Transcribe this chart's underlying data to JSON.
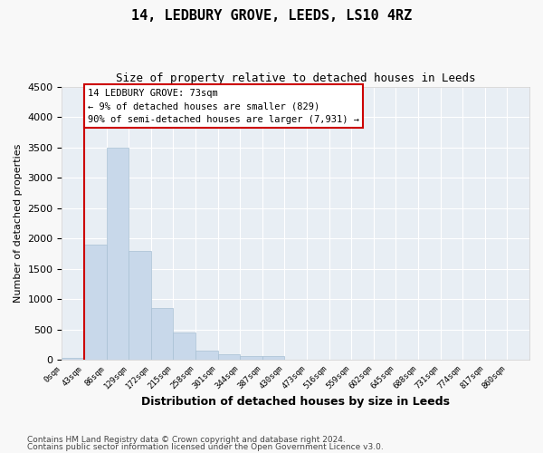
{
  "title": "14, LEDBURY GROVE, LEEDS, LS10 4RZ",
  "subtitle": "Size of property relative to detached houses in Leeds",
  "xlabel": "Distribution of detached houses by size in Leeds",
  "ylabel": "Number of detached properties",
  "bar_values": [
    30,
    1900,
    3500,
    1800,
    850,
    450,
    160,
    100,
    70,
    60,
    0,
    0,
    0,
    0,
    0,
    0,
    0,
    0,
    0,
    0,
    0
  ],
  "categories": [
    "0sqm",
    "43sqm",
    "86sqm",
    "129sqm",
    "172sqm",
    "215sqm",
    "258sqm",
    "301sqm",
    "344sqm",
    "387sqm",
    "430sqm",
    "473sqm",
    "516sqm",
    "559sqm",
    "602sqm",
    "645sqm",
    "688sqm",
    "731sqm",
    "774sqm",
    "817sqm",
    "860sqm"
  ],
  "bar_color": "#c8d8ea",
  "bar_edge_color": "#a8c0d4",
  "vline_x": 1,
  "vline_color": "#cc0000",
  "ylim": [
    0,
    4500
  ],
  "yticks": [
    0,
    500,
    1000,
    1500,
    2000,
    2500,
    3000,
    3500,
    4000,
    4500
  ],
  "annotation_text": "14 LEDBURY GROVE: 73sqm\n← 9% of detached houses are smaller (829)\n90% of semi-detached houses are larger (7,931) →",
  "annotation_box_color": "#ffffff",
  "annotation_box_edge": "#cc0000",
  "footnote1": "Contains HM Land Registry data © Crown copyright and database right 2024.",
  "footnote2": "Contains public sector information licensed under the Open Government Licence v3.0.",
  "plot_bg_color": "#e8eef4",
  "fig_bg_color": "#f8f8f8"
}
